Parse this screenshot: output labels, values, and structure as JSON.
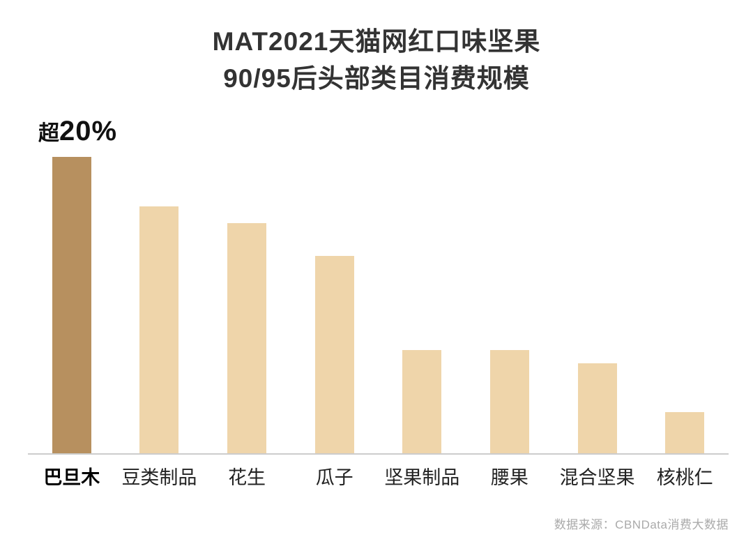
{
  "chart_data": {
    "type": "bar",
    "title": "MAT2021天猫网红口味坚果 90/95后头部类目消费规模",
    "title_lines": [
      "MAT2021天猫网红口味坚果",
      "90/95后头部类目消费规模"
    ],
    "annotation": {
      "prefix": "超",
      "value": "20%",
      "full": "超20%"
    },
    "categories": [
      "巴旦木",
      "豆类制品",
      "花生",
      "瓜子",
      "坚果制品",
      "腰果",
      "混合坚果",
      "核桃仁"
    ],
    "values": [
      21,
      17.5,
      16.3,
      14.0,
      7.3,
      7.3,
      6.4,
      2.9
    ],
    "unit": "%",
    "ylim": [
      0,
      21.5
    ],
    "highlight_index": 0,
    "highlight_color": "#b7905f",
    "bar_color": "#efd5aa",
    "baseline_color": "#cccccc",
    "grid": false,
    "legend": "none",
    "source": "数据来源：CBNData消费大数据"
  }
}
